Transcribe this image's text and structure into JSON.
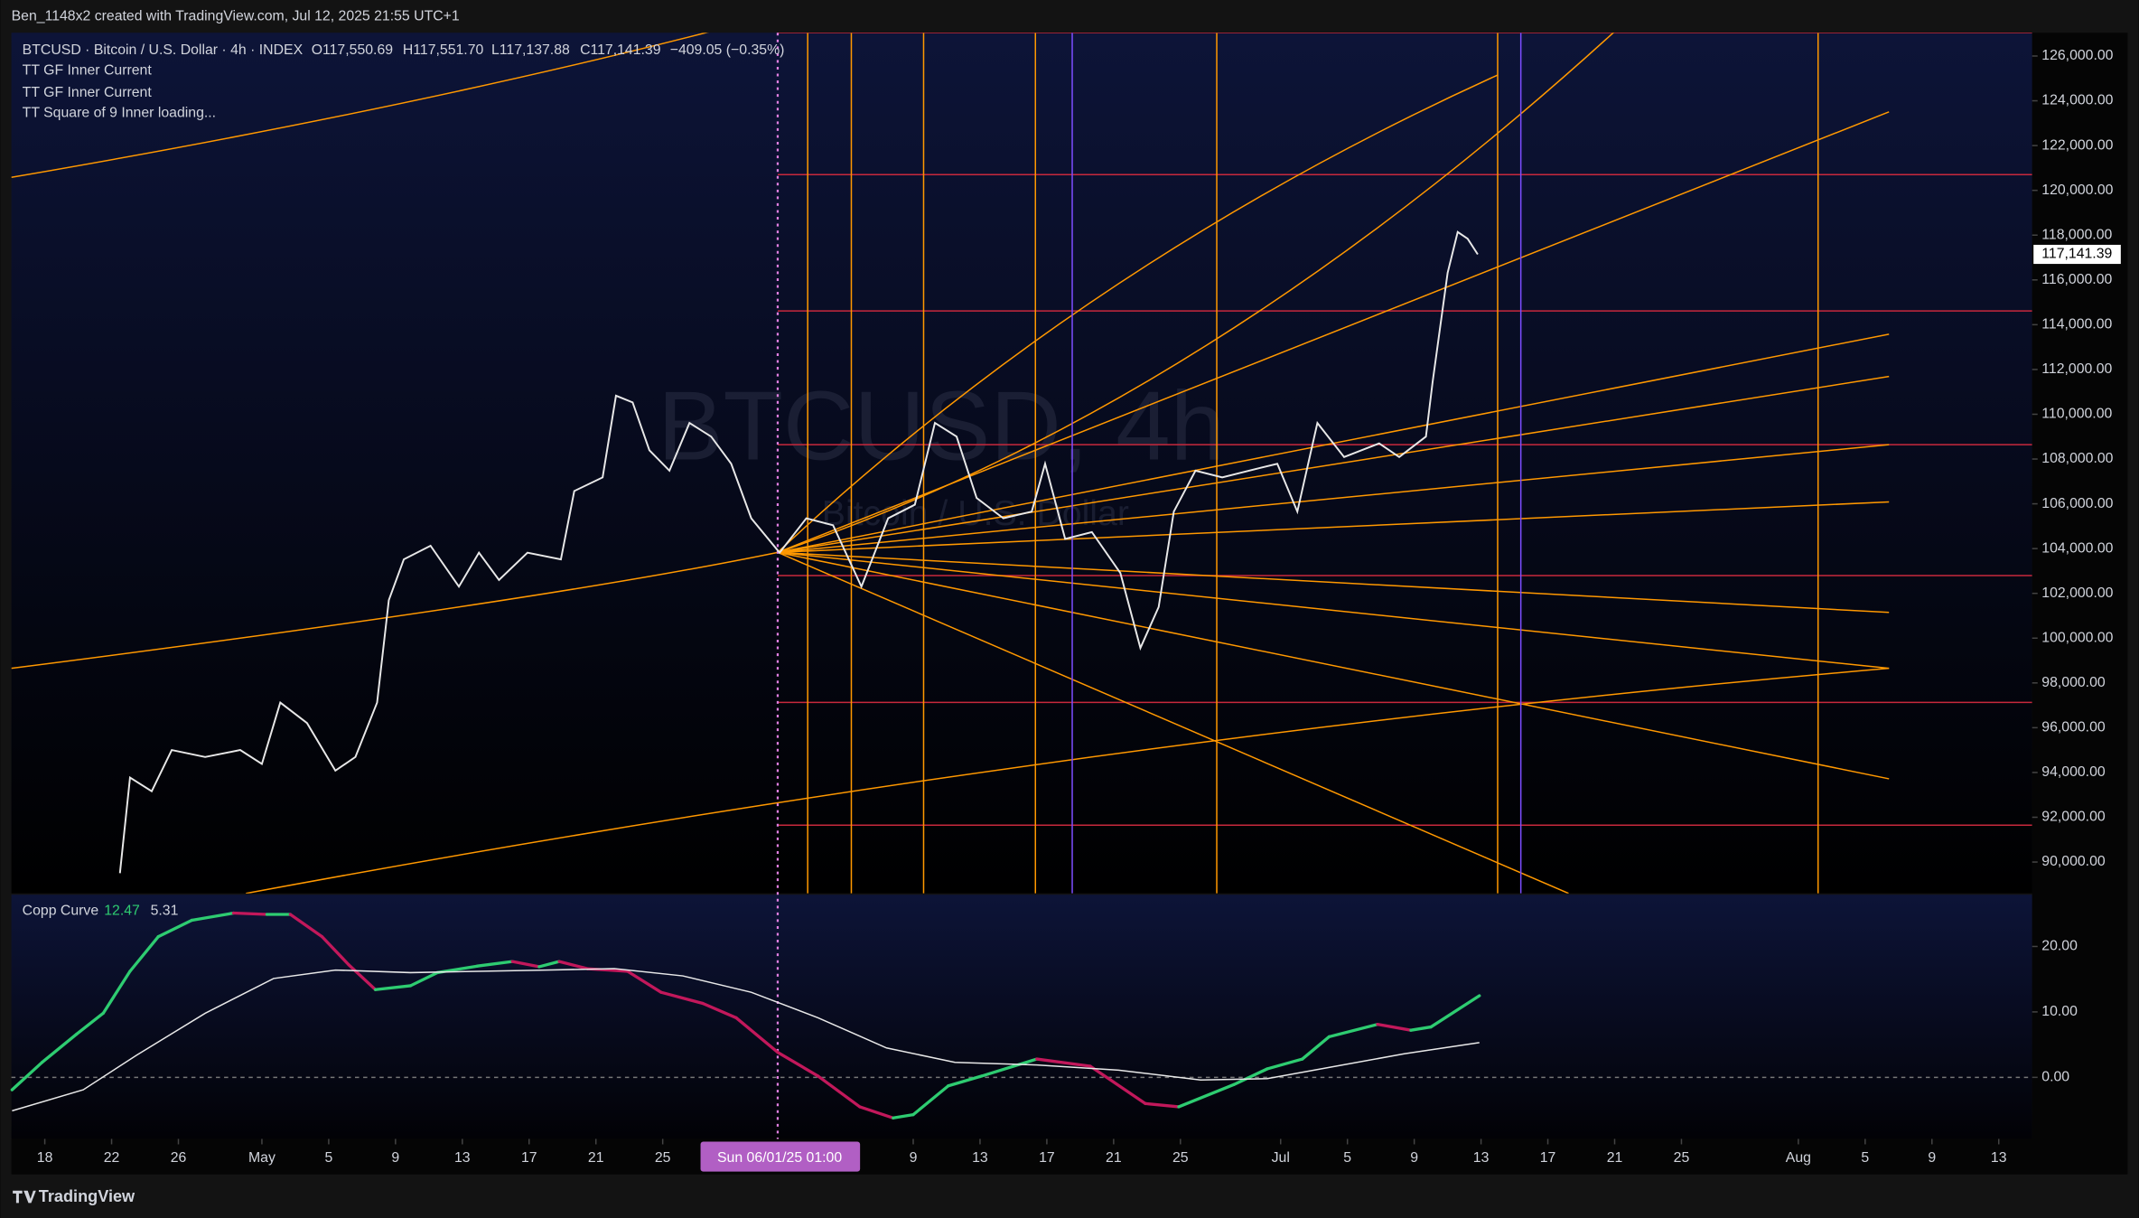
{
  "header": "Ben_1148x2 created with TradingView.com, Jul 12, 2025 21:55 UTC+1",
  "footer": "TradingView",
  "chart_data": [
    {
      "type": "line",
      "symbol": "BTCUSD · Bitcoin / U.S. Dollar · 4h · INDEX",
      "ohlc": [
        "O117,550.69",
        "H117,551.70",
        "L117,137.88",
        "C117,141.39"
      ],
      "change": "−409.05 (−0.35%)",
      "indicators": [
        "TT GF Inner Current",
        "TT GF Inner Current",
        "TT Square of 9 Inner loading..."
      ],
      "watermark": "BTCUSD, 4h",
      "watermark_subtitle": "Bitcoin / U.S. Dollar",
      "xlim": [
        106,
        227
      ],
      "ylim": [
        88600,
        127040
      ],
      "xticks": [
        {
          "value": 108,
          "label": "18"
        },
        {
          "value": 112,
          "label": "22"
        },
        {
          "value": 116,
          "label": "26"
        },
        {
          "value": 121,
          "label": "May"
        },
        {
          "value": 125,
          "label": "5"
        },
        {
          "value": 129,
          "label": "9"
        },
        {
          "value": 133,
          "label": "13"
        },
        {
          "value": 137,
          "label": "17"
        },
        {
          "value": 141,
          "label": "21"
        },
        {
          "value": 145,
          "label": "25"
        },
        {
          "value": 160,
          "label": "9"
        },
        {
          "value": 164,
          "label": "13"
        },
        {
          "value": 168,
          "label": "17"
        },
        {
          "value": 172,
          "label": "21"
        },
        {
          "value": 176,
          "label": "25"
        },
        {
          "value": 182,
          "label": "Jul"
        },
        {
          "value": 186,
          "label": "5"
        },
        {
          "value": 190,
          "label": "9"
        },
        {
          "value": 194,
          "label": "13"
        },
        {
          "value": 198,
          "label": "17"
        },
        {
          "value": 202,
          "label": "21"
        },
        {
          "value": 206,
          "label": "25"
        },
        {
          "value": 213,
          "label": "Aug"
        },
        {
          "value": 217,
          "label": "5"
        },
        {
          "value": 221,
          "label": "9"
        },
        {
          "value": 225,
          "label": "13"
        }
      ],
      "crosshair": {
        "value": 152,
        "label": "Sun 06/01/25   01:00"
      },
      "yticks": [
        {
          "value": 90000,
          "label": "90,000.00"
        },
        {
          "value": 92000,
          "label": "92,000.00"
        },
        {
          "value": 94000,
          "label": "94,000.00"
        },
        {
          "value": 96000,
          "label": "96,000.00"
        },
        {
          "value": 98000,
          "label": "98,000.00"
        },
        {
          "value": 100000,
          "label": "100,000.00"
        },
        {
          "value": 102000,
          "label": "102,000.00"
        },
        {
          "value": 104000,
          "label": "104,000.00"
        },
        {
          "value": 106000,
          "label": "106,000.00"
        },
        {
          "value": 108000,
          "label": "108,000.00"
        },
        {
          "value": 110000,
          "label": "110,000.00"
        },
        {
          "value": 112000,
          "label": "112,000.00"
        },
        {
          "value": 114000,
          "label": "114,000.00"
        },
        {
          "value": 116000,
          "label": "116,000.00"
        },
        {
          "value": 118000,
          "label": "118,000.00"
        },
        {
          "value": 120000,
          "label": "120,000.00"
        },
        {
          "value": 122000,
          "label": "122,000.00"
        },
        {
          "value": 124000,
          "label": "124,000.00"
        },
        {
          "value": 126000,
          "label": "126,000.00"
        }
      ],
      "series": [
        {
          "color": "#e8e8e8",
          "last_label": "117,141.39",
          "x": [
            112.5,
            113.1,
            114.4,
            115.6,
            117.6,
            119.7,
            121,
            122.1,
            123.7,
            125.4,
            126.6,
            127.9,
            128.6,
            129.5,
            131.1,
            132.8,
            134,
            135.2,
            136.9,
            138.9,
            139.7,
            141.4,
            142.2,
            143.2,
            144.2,
            145.4,
            146.6,
            147.9,
            149.1,
            150.3,
            152,
            153.6,
            155.2,
            156.9,
            158.5,
            160.1,
            161.3,
            162.6,
            163.8,
            165.4,
            167.1,
            167.9,
            169.1,
            170.7,
            172.4,
            173.6,
            174.7,
            175.6,
            176.9,
            178.5,
            180.1,
            181.8,
            183,
            184.2,
            185.8,
            187.9,
            189.1,
            190.7,
            191.1,
            192,
            192.6,
            193.2,
            193.8
          ],
          "values": [
            89500,
            93770,
            93160,
            95000,
            94690,
            95000,
            94380,
            97120,
            96210,
            94080,
            94690,
            97120,
            101700,
            103520,
            104130,
            102300,
            103820,
            102600,
            103820,
            103520,
            106570,
            107180,
            110830,
            110530,
            108390,
            107480,
            109610,
            109000,
            107790,
            105350,
            103820,
            105350,
            105040,
            102300,
            105350,
            105960,
            109610,
            109000,
            106260,
            105350,
            105650,
            107790,
            104430,
            104740,
            102910,
            99560,
            101390,
            105650,
            107480,
            107180,
            107480,
            107790,
            105650,
            109610,
            108090,
            108700,
            108090,
            109000,
            111440,
            116310,
            118140,
            117840,
            117141.39
          ]
        }
      ]
    },
    {
      "type": "line",
      "title": "Copp Curve",
      "xlim": [
        106,
        227
      ],
      "ylim": [
        -9.4,
        27.9
      ],
      "yticks": [
        {
          "value": 0,
          "label": "0.00"
        },
        {
          "value": 10,
          "label": "10.00"
        },
        {
          "value": 20,
          "label": "20.00"
        }
      ],
      "zero_line": true,
      "series": [
        {
          "color": "#2ecc71",
          "falling_color": "#c2185b",
          "last_label": "12.47",
          "x": [
            106.04,
            107.84,
            109.9,
            111.5,
            113.1,
            114.8,
            116.8,
            119.3,
            121.3,
            122.7,
            124.6,
            126.2,
            127.8,
            129.9,
            131.5,
            133.9,
            136,
            137.6,
            138.8,
            140.5,
            142.9,
            144.9,
            147.4,
            149.4,
            151.9,
            154.3,
            156.8,
            158.8,
            160,
            162.1,
            164.1,
            167.4,
            170.6,
            173.9,
            175.9,
            179.2,
            181.2,
            183.3,
            184.9,
            187.8,
            189.8,
            191,
            193.9
          ],
          "values": [
            -1.9,
            2.3,
            6.6,
            9.8,
            16.2,
            21.5,
            24,
            25.1,
            24.9,
            24.9,
            21.5,
            17.2,
            13.4,
            14,
            16,
            17,
            17.7,
            16.9,
            17.7,
            16.6,
            16.2,
            13,
            11.3,
            9.1,
            3.8,
            0.2,
            -4.5,
            -6.2,
            -5.7,
            -1.3,
            0.2,
            2.8,
            1.7,
            -4,
            -4.5,
            -1.1,
            1.3,
            2.8,
            6.2,
            8.1,
            7.2,
            7.7,
            12.47
          ]
        },
        {
          "color": "#e8e8e8",
          "last_label": "5.31",
          "x": [
            106.04,
            110.3,
            113.5,
            117.6,
            121.7,
            125.4,
            129.9,
            138,
            142.1,
            146.2,
            150.3,
            154.3,
            158.4,
            162.5,
            167.4,
            172.3,
            177.2,
            181.2,
            185.3,
            189.4,
            193.9
          ],
          "values": [
            -5.1,
            -1.9,
            3.4,
            9.8,
            15.1,
            16.4,
            16,
            16.4,
            16.6,
            15.5,
            13,
            9.1,
            4.5,
            2.3,
            1.9,
            1.1,
            -0.4,
            -0.2,
            1.7,
            3.6,
            5.31
          ]
        }
      ]
    }
  ]
}
